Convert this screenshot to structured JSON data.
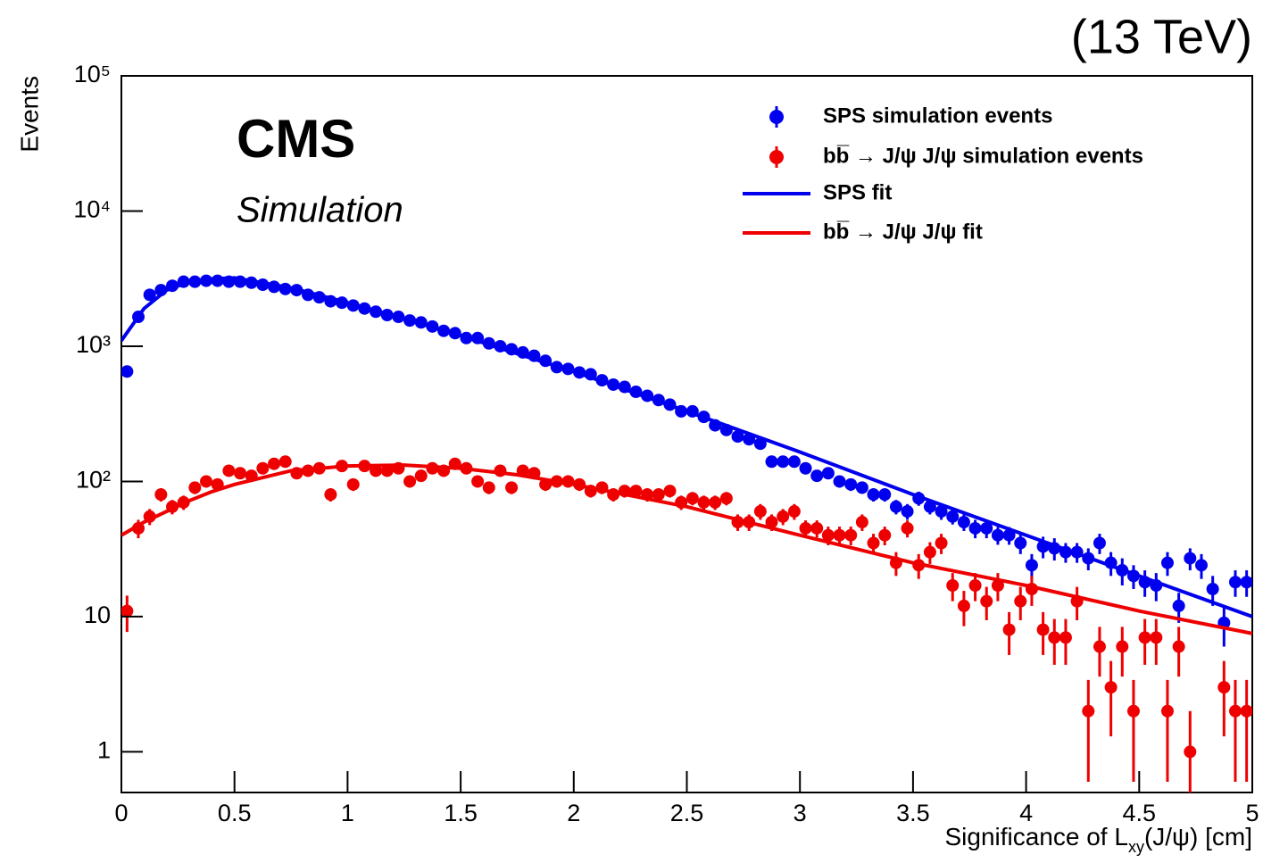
{
  "chart_data": {
    "type": "scatter",
    "energy_label": "(13 TeV)",
    "experiment": "CMS",
    "subtitle": "Simulation",
    "y_label": "Events",
    "x_label": [
      "Significance of L",
      "xy",
      "(J/ψ) [cm]"
    ],
    "log_y": true,
    "xlim": [
      0,
      5
    ],
    "ylim": [
      0.5,
      100000
    ],
    "xticks": [
      0,
      0.5,
      1,
      1.5,
      2,
      2.5,
      3,
      3.5,
      4,
      4.5,
      5
    ],
    "yticks": [
      1,
      10,
      {
        "value": 100,
        "label": "10²"
      },
      {
        "value": 1000,
        "label": "10³"
      },
      {
        "value": 10000,
        "label": "10⁴"
      },
      {
        "value": 100000,
        "label": "10⁵"
      }
    ],
    "legend": "top-right",
    "series": [
      {
        "name": "SPS simulation events",
        "type": "errorbar",
        "color": "#0000ee",
        "x": [
          0.025,
          0.075,
          0.125,
          0.175,
          0.225,
          0.275,
          0.325,
          0.375,
          0.425,
          0.475,
          0.525,
          0.575,
          0.625,
          0.675,
          0.725,
          0.775,
          0.825,
          0.875,
          0.925,
          0.975,
          1.025,
          1.075,
          1.125,
          1.175,
          1.225,
          1.275,
          1.325,
          1.375,
          1.425,
          1.475,
          1.525,
          1.575,
          1.625,
          1.675,
          1.725,
          1.775,
          1.825,
          1.875,
          1.925,
          1.975,
          2.025,
          2.075,
          2.125,
          2.175,
          2.225,
          2.275,
          2.325,
          2.375,
          2.425,
          2.475,
          2.525,
          2.575,
          2.625,
          2.675,
          2.725,
          2.775,
          2.825,
          2.875,
          2.925,
          2.975,
          3.025,
          3.075,
          3.125,
          3.175,
          3.225,
          3.275,
          3.325,
          3.375,
          3.425,
          3.475,
          3.525,
          3.575,
          3.625,
          3.675,
          3.725,
          3.775,
          3.825,
          3.875,
          3.925,
          3.975,
          4.025,
          4.075,
          4.125,
          4.175,
          4.225,
          4.275,
          4.325,
          4.375,
          4.425,
          4.475,
          4.525,
          4.575,
          4.625,
          4.675,
          4.725,
          4.775,
          4.825,
          4.875,
          4.925,
          4.975
        ],
        "values": [
          650,
          1650,
          2400,
          2600,
          2800,
          3000,
          3000,
          3050,
          3050,
          3000,
          3000,
          2950,
          2850,
          2750,
          2650,
          2600,
          2400,
          2300,
          2150,
          2100,
          2000,
          1900,
          1800,
          1700,
          1650,
          1550,
          1500,
          1400,
          1300,
          1250,
          1150,
          1150,
          1050,
          1000,
          950,
          900,
          850,
          780,
          700,
          680,
          640,
          620,
          560,
          520,
          500,
          460,
          430,
          400,
          370,
          330,
          330,
          300,
          260,
          240,
          215,
          205,
          190,
          140,
          140,
          140,
          125,
          110,
          115,
          100,
          95,
          90,
          80,
          80,
          65,
          60,
          75,
          65,
          60,
          55,
          50,
          45,
          45,
          40,
          40,
          35,
          24,
          33,
          32,
          30,
          30,
          27,
          35,
          25,
          22,
          20,
          18,
          17,
          25,
          12,
          27,
          24,
          16,
          9,
          18,
          18
        ],
        "errors": [
          25,
          40,
          50,
          50,
          53,
          55,
          55,
          55,
          55,
          55,
          55,
          54,
          53,
          52,
          51,
          51,
          49,
          48,
          46,
          46,
          45,
          44,
          42,
          41,
          41,
          39,
          39,
          37,
          36,
          35,
          34,
          34,
          32,
          32,
          31,
          30,
          29,
          28,
          26,
          26,
          25,
          25,
          24,
          23,
          22,
          21,
          21,
          20,
          19,
          18,
          18,
          17,
          16,
          15,
          15,
          14,
          14,
          12,
          12,
          12,
          11,
          10,
          11,
          10,
          10,
          9,
          9,
          9,
          8,
          8,
          9,
          8,
          8,
          7,
          7,
          7,
          7,
          6,
          6,
          6,
          5,
          6,
          6,
          5,
          5,
          5,
          6,
          5,
          5,
          4,
          4,
          4,
          5,
          3,
          5,
          5,
          4,
          3,
          4,
          4
        ]
      },
      {
        "name": "bb̅ → J/ψ J/ψ simulation events",
        "type": "errorbar",
        "color": "#ee0000",
        "x": [
          0.025,
          0.075,
          0.125,
          0.175,
          0.225,
          0.275,
          0.325,
          0.375,
          0.425,
          0.475,
          0.525,
          0.575,
          0.625,
          0.675,
          0.725,
          0.775,
          0.825,
          0.875,
          0.925,
          0.975,
          1.025,
          1.075,
          1.125,
          1.175,
          1.225,
          1.275,
          1.325,
          1.375,
          1.425,
          1.475,
          1.525,
          1.575,
          1.625,
          1.675,
          1.725,
          1.775,
          1.825,
          1.875,
          1.925,
          1.975,
          2.025,
          2.075,
          2.125,
          2.175,
          2.225,
          2.275,
          2.325,
          2.375,
          2.425,
          2.475,
          2.525,
          2.575,
          2.625,
          2.675,
          2.725,
          2.775,
          2.825,
          2.875,
          2.925,
          2.975,
          3.025,
          3.075,
          3.125,
          3.175,
          3.225,
          3.275,
          3.325,
          3.375,
          3.425,
          3.475,
          3.525,
          3.575,
          3.625,
          3.675,
          3.725,
          3.775,
          3.825,
          3.875,
          3.925,
          3.975,
          4.025,
          4.075,
          4.125,
          4.175,
          4.225,
          4.275,
          4.325,
          4.375,
          4.425,
          4.475,
          4.525,
          4.575,
          4.625,
          4.675,
          4.725,
          4.775,
          4.825,
          4.875,
          4.925,
          4.975
        ],
        "values": [
          11,
          45,
          55,
          80,
          65,
          70,
          90,
          100,
          95,
          120,
          115,
          110,
          125,
          135,
          140,
          115,
          120,
          125,
          80,
          130,
          95,
          130,
          120,
          120,
          125,
          100,
          110,
          125,
          120,
          135,
          125,
          100,
          90,
          120,
          90,
          120,
          115,
          95,
          100,
          100,
          95,
          85,
          90,
          80,
          85,
          85,
          80,
          80,
          85,
          70,
          75,
          70,
          70,
          75,
          50,
          50,
          60,
          50,
          55,
          60,
          45,
          45,
          40,
          40,
          40,
          50,
          35,
          40,
          25,
          45,
          24,
          30,
          35,
          17,
          12,
          17,
          13,
          17,
          8,
          13,
          16,
          8,
          7,
          7,
          13,
          2,
          6,
          3,
          6,
          2,
          7,
          7,
          2,
          6,
          1,
          null,
          null,
          3,
          2,
          2
        ],
        "errors": [
          3.3,
          7,
          7.5,
          9,
          8,
          8.5,
          9.5,
          10,
          10,
          11,
          11,
          10.5,
          11,
          11.5,
          12,
          11,
          11,
          11,
          9,
          11.5,
          10,
          11.5,
          11,
          11,
          11,
          10,
          10.5,
          11,
          11,
          11.5,
          11,
          10,
          9.5,
          11,
          9.5,
          11,
          10.5,
          10,
          10,
          10,
          10,
          9,
          9.5,
          9,
          9,
          9,
          9,
          9,
          9,
          8.5,
          8.5,
          8.5,
          8.5,
          8.5,
          7,
          7,
          8,
          7,
          7.5,
          8,
          6.5,
          6.5,
          6.3,
          6.3,
          6.3,
          7,
          6,
          6.3,
          5,
          6.5,
          5,
          5.5,
          6,
          4,
          3.5,
          4,
          3.6,
          4,
          2.8,
          3.6,
          4,
          2.8,
          2.6,
          2.6,
          3.6,
          1.4,
          2.4,
          1.7,
          2.4,
          1.4,
          2.6,
          2.6,
          1.4,
          2.4,
          1,
          null,
          null,
          1.7,
          1.4,
          1.4
        ]
      },
      {
        "name": "SPS fit",
        "type": "line",
        "color": "#0000ee",
        "x": [
          0,
          0.1,
          0.2,
          0.3,
          0.4,
          0.5,
          0.75,
          1,
          1.25,
          1.5,
          1.75,
          2,
          2.5,
          3,
          3.5,
          4,
          4.5,
          5
        ],
        "values": [
          1100,
          1900,
          2600,
          3000,
          3150,
          3200,
          2700,
          2100,
          1600,
          1200,
          880,
          650,
          330,
          165,
          80,
          40,
          20,
          10
        ]
      },
      {
        "name": "bb̅ → J/ψ J/ψ fit",
        "type": "line",
        "color": "#ee0000",
        "x": [
          0,
          0.1,
          0.2,
          0.3,
          0.4,
          0.5,
          0.75,
          1,
          1.25,
          1.5,
          1.75,
          2,
          2.5,
          3,
          3.5,
          4,
          4.5,
          5
        ],
        "values": [
          40,
          50,
          60,
          72,
          84,
          95,
          120,
          130,
          132,
          125,
          112,
          95,
          65,
          40,
          25,
          17,
          11,
          7.5
        ]
      }
    ]
  }
}
